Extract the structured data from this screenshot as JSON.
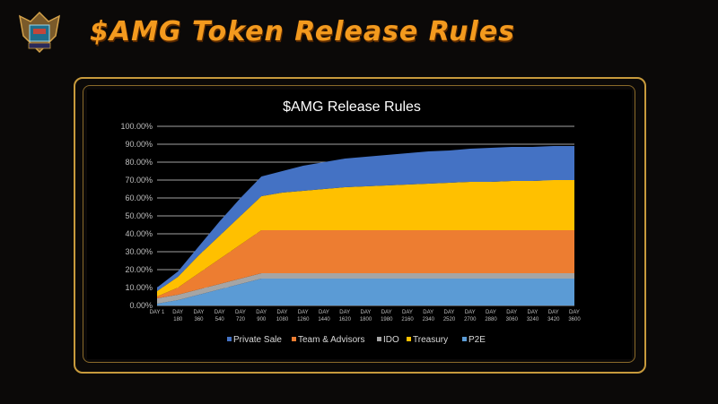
{
  "header": {
    "title": "$AMG Token Release Rules",
    "logo_icon": "shield-crest-icon"
  },
  "chart_data": {
    "type": "area",
    "title": "$AMG Release Rules",
    "xlabel": "",
    "ylabel": "",
    "ylim": [
      0,
      100
    ],
    "y_ticks": [
      "0.00%",
      "10.00%",
      "20.00%",
      "30.00%",
      "40.00%",
      "50.00%",
      "60.00%",
      "70.00%",
      "80.00%",
      "90.00%",
      "100.00%"
    ],
    "categories": [
      "DAY 1",
      "DAY 180",
      "DAY 360",
      "DAY 540",
      "DAY 720",
      "DAY 900",
      "DAY 1080",
      "DAY 1260",
      "DAY 1440",
      "DAY 1620",
      "DAY 1800",
      "DAY 1980",
      "DAY 2160",
      "DAY 2340",
      "DAY 2520",
      "DAY 2700",
      "DAY 2880",
      "DAY 3060",
      "DAY 3240",
      "DAY 3420",
      "DAY 3600"
    ],
    "stacked": true,
    "grid": true,
    "legend_position": "bottom",
    "series": [
      {
        "name": "P2E",
        "color": "#5b9bd5",
        "values": [
          1,
          3,
          6,
          9,
          12,
          15,
          15,
          15,
          15,
          15,
          15,
          15,
          15,
          15,
          15,
          15,
          15,
          15,
          15,
          15,
          15
        ]
      },
      {
        "name": "IDO",
        "color": "#a5a5a5",
        "values": [
          3,
          3,
          3,
          3,
          3,
          3,
          3,
          3,
          3,
          3,
          3,
          3,
          3,
          3,
          3,
          3,
          3,
          3,
          3,
          3,
          3
        ]
      },
      {
        "name": "Team & Advisors",
        "color": "#ed7d31",
        "values": [
          1,
          4,
          9,
          14,
          19,
          24,
          24,
          24,
          24,
          24,
          24,
          24,
          24,
          24,
          24,
          24,
          24,
          24,
          24,
          24,
          24
        ]
      },
      {
        "name": "Treasury",
        "color": "#ffc000",
        "values": [
          3,
          6,
          10,
          13,
          16,
          19,
          21,
          22,
          23,
          24,
          24.5,
          25,
          25.5,
          26,
          26.5,
          27,
          27,
          27.5,
          27.5,
          28,
          28
        ]
      },
      {
        "name": "Private Sale",
        "color": "#4472c4",
        "values": [
          2,
          3,
          5,
          8,
          10,
          11,
          12,
          14,
          15,
          16,
          16.5,
          17,
          17.5,
          18,
          18,
          18.5,
          19,
          19,
          19,
          19,
          19
        ]
      }
    ],
    "legend_order": [
      "Private Sale",
      "Team & Advisors",
      "IDO",
      "Treasury",
      "P2E"
    ]
  }
}
